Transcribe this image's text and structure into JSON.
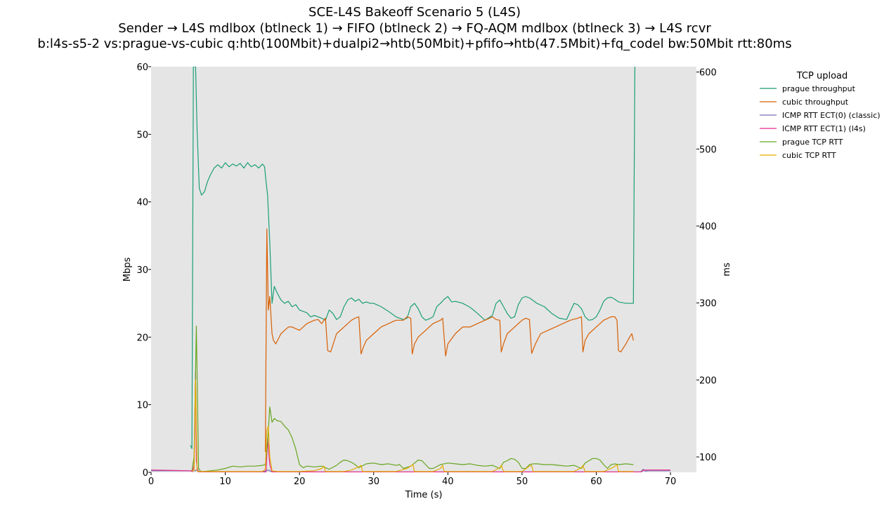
{
  "chart_data": {
    "type": "line",
    "title_lines": [
      "SCE-L4S Bakeoff Scenario 5 (L4S)",
      "Sender → L4S mdlbox (btlneck 1) → FIFO (btlneck 2) → FQ-AQM mdlbox (btlneck 3) → L4S rcvr",
      "b:l4s-s5-2 vs:prague-vs-cubic q:htb(100Mbit)+dualpi2→htb(50Mbit)+pfifo→htb(47.5Mbit)+fq_codel bw:50Mbit rtt:80ms"
    ],
    "xlabel": "Time (s)",
    "ylabel_left": "Mbps",
    "ylabel_right": "ms",
    "xlim": [
      0,
      73.5
    ],
    "ylim_left": [
      0,
      60
    ],
    "ylim_right": [
      80,
      607
    ],
    "xticks": [
      0,
      10,
      20,
      30,
      40,
      50,
      60,
      70
    ],
    "yticks_left": [
      0,
      10,
      20,
      30,
      40,
      50,
      60
    ],
    "yticks_right": [
      100,
      200,
      300,
      400,
      500,
      600
    ],
    "background": "#e5e5e5",
    "grid": false,
    "legend": {
      "title": "TCP upload",
      "placement": "outside-right"
    },
    "series": [
      {
        "name": "prague throughput",
        "axis": "left",
        "color": "#1b9e77",
        "x": [
          5.3,
          5.5,
          5.7,
          6.0,
          6.2,
          6.5,
          6.8,
          7.2,
          7.6,
          8.0,
          8.5,
          9.0,
          9.5,
          10.0,
          10.5,
          11.0,
          11.5,
          12.0,
          12.5,
          13.0,
          13.5,
          14.0,
          14.5,
          15.0,
          15.3,
          15.5,
          15.7,
          16.0,
          16.3,
          16.6,
          17.0,
          17.5,
          18.0,
          18.5,
          19.0,
          19.5,
          20.0,
          20.5,
          21.0,
          21.5,
          22.0,
          22.5,
          23.0,
          23.5,
          24.0,
          24.5,
          25.0,
          25.5,
          26.0,
          26.5,
          27.0,
          27.5,
          28.0,
          28.5,
          29.0,
          29.5,
          30.0,
          31.0,
          32.0,
          33.0,
          34.0,
          34.5,
          35.0,
          35.5,
          36.0,
          36.5,
          37.0,
          37.5,
          38.0,
          38.5,
          39.0,
          39.5,
          40.0,
          40.5,
          41.0,
          42.0,
          43.0,
          44.0,
          45.0,
          46.0,
          46.5,
          47.0,
          47.5,
          48.0,
          48.5,
          49.0,
          49.5,
          50.0,
          50.5,
          51.0,
          51.5,
          52.0,
          53.0,
          54.0,
          55.0,
          56.0,
          56.5,
          57.0,
          57.5,
          58.0,
          58.5,
          59.0,
          59.5,
          60.0,
          60.5,
          61.0,
          61.5,
          62.0,
          62.5,
          63.0,
          64.0,
          65.0,
          65.2
        ],
        "values": [
          4,
          3.5,
          60,
          60,
          50.5,
          42,
          41,
          41.5,
          43,
          44,
          45,
          45.5,
          45,
          45.8,
          45.2,
          45.6,
          45.3,
          45.7,
          45,
          45.8,
          45.2,
          45.5,
          45,
          45.6,
          45.2,
          43,
          41,
          34,
          25,
          27.5,
          26.5,
          25.5,
          25,
          25.3,
          24.5,
          24.8,
          24,
          23.8,
          23.6,
          23,
          23.2,
          23,
          22.8,
          22.5,
          24,
          23.5,
          22.6,
          23,
          24.5,
          25.5,
          25.8,
          25.3,
          25.6,
          25,
          25.2,
          25,
          25,
          24.5,
          23.8,
          23,
          22.6,
          22.8,
          24.5,
          25,
          24.2,
          23,
          22.5,
          22.7,
          23,
          24.5,
          25,
          25.6,
          26,
          25.2,
          25.3,
          25,
          24.4,
          23.5,
          22.5,
          23.2,
          25,
          25.5,
          24.5,
          23.5,
          22.8,
          23,
          24.8,
          25.8,
          26,
          25.8,
          25.4,
          25,
          24.5,
          23.5,
          22.8,
          22.6,
          23.8,
          25,
          24.8,
          24.2,
          23,
          22.5,
          22.6,
          23,
          24,
          25.3,
          25.8,
          25.9,
          25.6,
          25.2,
          25,
          25,
          60
        ]
      },
      {
        "name": "cubic throughput",
        "axis": "left",
        "color": "#d95f02",
        "x": [
          15.4,
          15.6,
          15.8,
          16.0,
          16.3,
          16.5,
          16.8,
          17.5,
          18.0,
          18.5,
          19.0,
          20.0,
          21.0,
          22.0,
          22.5,
          23.0,
          23.3,
          23.5,
          23.8,
          24.2,
          25.0,
          26.0,
          27.0,
          27.5,
          28.0,
          28.3,
          28.6,
          29.0,
          30.0,
          31.0,
          32.0,
          33.0,
          34.0,
          34.5,
          35.0,
          35.2,
          35.5,
          36.0,
          37.0,
          38.0,
          39.0,
          39.3,
          39.7,
          40.0,
          41.0,
          42.0,
          43.0,
          44.0,
          45.0,
          46.0,
          46.5,
          47.0,
          47.2,
          47.5,
          48.0,
          49.0,
          50.0,
          50.5,
          51.0,
          51.3,
          51.8,
          52.5,
          53.5,
          54.5,
          55.5,
          56.5,
          57.5,
          58.0,
          58.2,
          58.5,
          59.0,
          60.0,
          61.0,
          62.0,
          62.5,
          62.8,
          63.0,
          63.3,
          64.0,
          64.5,
          64.8,
          65.0
        ],
        "values": [
          3,
          36,
          24,
          26,
          20.5,
          19.5,
          19,
          20.5,
          21,
          21.5,
          21.5,
          21,
          22,
          22.5,
          22.6,
          22,
          22.5,
          22.8,
          18,
          17.8,
          20.5,
          21.5,
          22.5,
          22.8,
          23,
          17.5,
          18.5,
          19.5,
          20.5,
          21.5,
          22,
          22.5,
          22.5,
          23,
          22.8,
          17.5,
          19,
          20,
          21,
          22,
          22.5,
          22.8,
          17.2,
          19,
          20.5,
          21.5,
          21.5,
          22,
          22.5,
          23,
          22.6,
          22.5,
          17.8,
          19,
          20.5,
          21.5,
          22.5,
          22.8,
          22.6,
          17.6,
          19,
          20.5,
          21,
          21.5,
          22,
          22.5,
          22.8,
          23,
          17.8,
          19.5,
          20.5,
          21.5,
          22.5,
          23,
          23,
          22.5,
          18,
          17.8,
          19,
          20,
          20.5,
          19.5
        ]
      },
      {
        "name": "ICMP RTT ECT(0) (classic)",
        "axis": "right",
        "color": "#7570b3",
        "x": [
          0,
          5.5,
          6.0,
          6.2,
          6.5,
          15.0,
          15.8,
          16.0,
          16.3,
          20.0,
          30.0,
          40.0,
          50.0,
          60.0,
          65.5,
          66.0,
          66.3,
          66.6,
          67.0,
          70.0
        ],
        "values": [
          82,
          82,
          82,
          84,
          80.5,
          80.5,
          83,
          82,
          80.5,
          80.5,
          80.5,
          80.5,
          80.5,
          80.5,
          80.5,
          80.5,
          84,
          81.5,
          82,
          82
        ]
      },
      {
        "name": "ICMP RTT ECT(1) (l4s)",
        "axis": "right",
        "color": "#e7298a",
        "x": [
          0,
          5.3,
          5.6,
          5.8,
          6.0,
          6.1,
          6.3,
          6.6,
          15.0,
          15.5,
          15.7,
          16.0,
          16.3,
          20.0,
          30.0,
          40.0,
          50.0,
          60.0,
          66.0,
          66.5,
          70.0
        ],
        "values": [
          83,
          82,
          81,
          90,
          210,
          95,
          81,
          80.5,
          80.5,
          80.5,
          124,
          90,
          80.5,
          80.5,
          80.5,
          80.5,
          80.5,
          80.5,
          80.5,
          83,
          83
        ]
      },
      {
        "name": "prague TCP RTT",
        "axis": "right",
        "color": "#66a61e",
        "x": [
          5.5,
          5.8,
          6.1,
          6.4,
          6.7,
          7.0,
          8.0,
          9.0,
          10.0,
          11.0,
          12.0,
          13.0,
          14.0,
          15.0,
          15.4,
          15.7,
          16.0,
          16.3,
          16.6,
          17.0,
          17.5,
          18.0,
          18.5,
          19.0,
          19.5,
          20.0,
          20.5,
          21.0,
          22.0,
          23.0,
          24.0,
          25.0,
          25.5,
          26.0,
          26.5,
          27.0,
          27.5,
          28.0,
          29.0,
          30.0,
          31.0,
          32.0,
          33.0,
          33.5,
          34.0,
          35.0,
          35.5,
          36.0,
          36.5,
          37.0,
          37.5,
          38.0,
          39.0,
          40.0,
          41.0,
          42.0,
          43.0,
          44.0,
          45.0,
          46.0,
          47.0,
          47.5,
          48.0,
          48.5,
          49.0,
          49.5,
          50.0,
          50.5,
          51.0,
          51.5,
          52.0,
          53.0,
          54.0,
          55.0,
          56.0,
          57.0,
          58.0,
          58.5,
          59.0,
          59.5,
          60.0,
          60.5,
          61.0,
          61.5,
          62.0,
          62.5,
          63.0,
          64.0,
          65.0
        ],
        "values": [
          82,
          100,
          270,
          85,
          81,
          81,
          82,
          83,
          85,
          88,
          87,
          88,
          88,
          89,
          90,
          120,
          165,
          145,
          150,
          147,
          146,
          140,
          135,
          125,
          110,
          90,
          86,
          88,
          87,
          88,
          84,
          89,
          93,
          96,
          95,
          93,
          90,
          86,
          91,
          92,
          90,
          91,
          89,
          90,
          85,
          88,
          92,
          96,
          95,
          90,
          85,
          85,
          90,
          92,
          91,
          90,
          91,
          89,
          88,
          89,
          85,
          93,
          95,
          98,
          97,
          93,
          85,
          85,
          90,
          91,
          91,
          90,
          90,
          89,
          88,
          89,
          85,
          92,
          95,
          98,
          98,
          96,
          90,
          85,
          90,
          91,
          90,
          91,
          90
        ]
      },
      {
        "name": "cubic TCP RTT",
        "axis": "right",
        "color": "#e6ab02",
        "x": [
          5.5,
          5.8,
          6.0,
          6.2,
          6.5,
          7.0,
          15.0,
          15.4,
          15.6,
          15.8,
          16.0,
          16.3,
          17.0,
          20.0,
          22.0,
          23.0,
          23.3,
          23.5,
          24.0,
          26.0,
          27.0,
          28.0,
          28.3,
          28.5,
          29.0,
          31.0,
          33.0,
          34.5,
          35.0,
          35.3,
          35.5,
          36.0,
          38.0,
          39.0,
          39.3,
          39.5,
          40.0,
          42.0,
          44.0,
          46.0,
          47.0,
          47.2,
          47.5,
          48.0,
          50.0,
          51.0,
          51.3,
          51.5,
          52.0,
          54.0,
          56.0,
          57.0,
          58.0,
          58.2,
          58.5,
          59.0,
          61.0,
          62.0,
          62.5,
          62.8,
          63.0,
          64.0,
          65.0
        ],
        "values": [
          82,
          82,
          200,
          82,
          81,
          81,
          81,
          84,
          135,
          140,
          100,
          82,
          81,
          81,
          82,
          85,
          88,
          81,
          81,
          81,
          83,
          87,
          89,
          81,
          81,
          81,
          81,
          85,
          88,
          90,
          81,
          81,
          81,
          85,
          89,
          81,
          81,
          81,
          81,
          81,
          86,
          89,
          81,
          81,
          81,
          88,
          89,
          81,
          81,
          81,
          81,
          81,
          86,
          89,
          81,
          81,
          81,
          85,
          88,
          90,
          81,
          81,
          81
        ]
      }
    ]
  }
}
